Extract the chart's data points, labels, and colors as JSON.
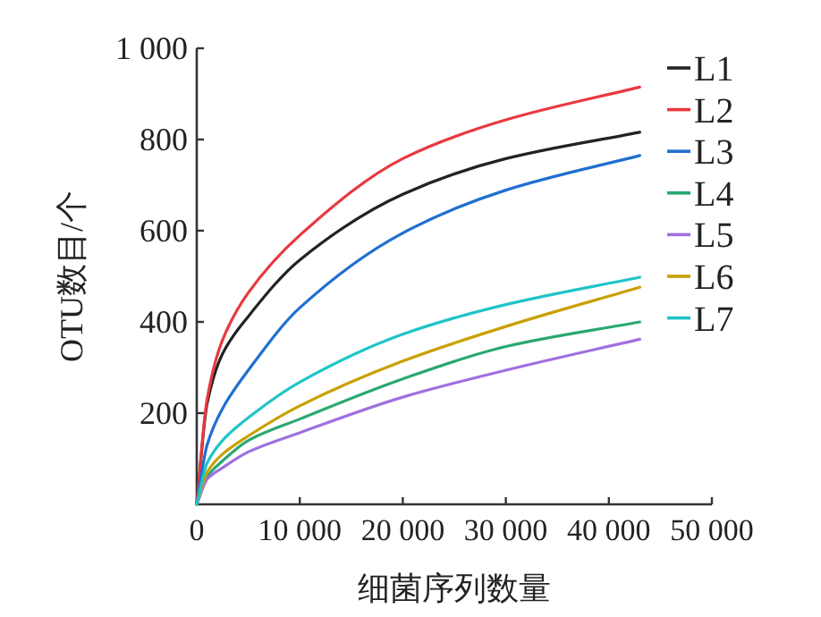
{
  "chart_data": {
    "type": "line",
    "xlabel": "细菌序列数量",
    "ylabel": "OTU数目/个",
    "x": [
      0,
      1000,
      2500,
      5000,
      10000,
      20000,
      30000,
      43000
    ],
    "series": [
      {
        "name": "L1",
        "color": "#222222",
        "values": [
          0,
          220,
          330,
          412,
          536,
          680,
          758,
          816
        ]
      },
      {
        "name": "L2",
        "color": "#e8393f",
        "values": [
          0,
          230,
          360,
          464,
          590,
          758,
          843,
          915
        ]
      },
      {
        "name": "L3",
        "color": "#1f6fd0",
        "values": [
          0,
          130,
          210,
          294,
          431,
          595,
          689,
          765
        ]
      },
      {
        "name": "L4",
        "color": "#2aa870",
        "values": [
          0,
          60,
          95,
          140,
          187,
          275,
          346,
          400
        ]
      },
      {
        "name": "L5",
        "color": "#a070e0",
        "values": [
          0,
          55,
          80,
          115,
          157,
          235,
          294,
          362
        ]
      },
      {
        "name": "L6",
        "color": "#c9a000",
        "values": [
          0,
          70,
          110,
          150,
          216,
          314,
          390,
          476
        ]
      },
      {
        "name": "L7",
        "color": "#1fc4c8",
        "values": [
          0,
          90,
          140,
          190,
          268,
          373,
          438,
          498
        ]
      }
    ],
    "xlim": [
      0,
      50000
    ],
    "ylim": [
      0,
      1000
    ],
    "xticks": [
      0,
      {
        "value": 10000,
        "label": "10 000"
      },
      {
        "value": 20000,
        "label": "20 000"
      },
      {
        "value": 30000,
        "label": "30 000"
      },
      {
        "value": 40000,
        "label": "40 000"
      },
      {
        "value": 50000,
        "label": "50 000"
      }
    ],
    "yticks": [
      200,
      400,
      600,
      800,
      {
        "value": 1000,
        "label": "1 000"
      }
    ],
    "legend": "top right",
    "grid": false,
    "marker": "none",
    "line_style": "solid"
  }
}
